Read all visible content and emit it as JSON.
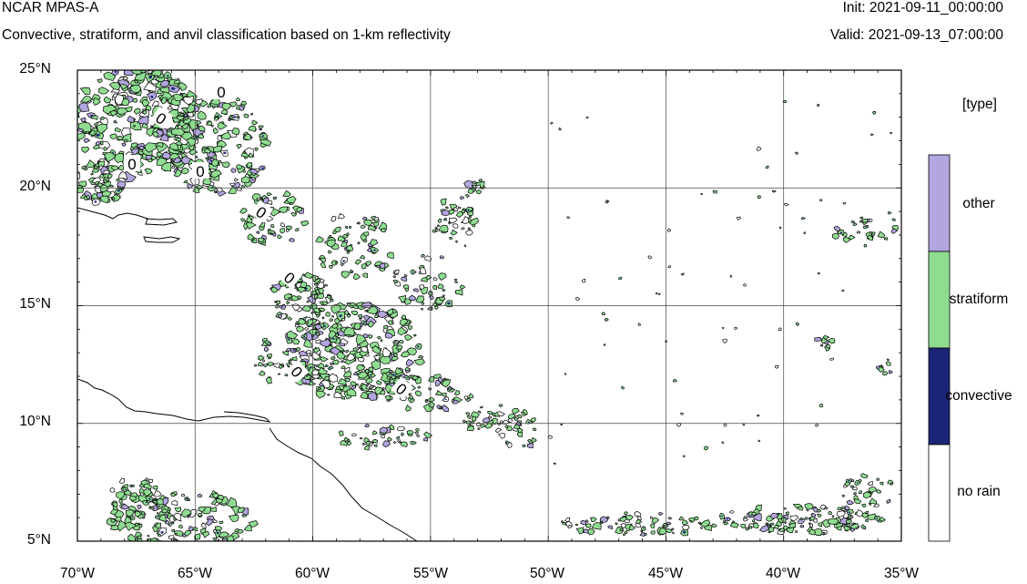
{
  "header": {
    "title": "NCAR MPAS-A",
    "subtitle": "Convective, stratiform, and anvil classification based on 1-km reflectivity",
    "init": "Init: 2021-09-11_00:00:00",
    "valid": "Valid: 2021-09-13_07:00:00"
  },
  "map": {
    "lon_range": [
      -70,
      -35
    ],
    "lat_range": [
      5,
      25
    ],
    "lat_labels": [
      "25°N",
      "20°N",
      "15°N",
      "10°N",
      "5°N"
    ],
    "lon_labels": [
      "70°W",
      "65°W",
      "60°W",
      "55°W",
      "50°W",
      "45°W",
      "40°W",
      "35°W"
    ],
    "contour_label": "0",
    "gridlines": true
  },
  "legend": {
    "title": "[type]",
    "categories": [
      {
        "label": "other",
        "color": "#b3a6de"
      },
      {
        "label": "stratiform",
        "color": "#8fdc91"
      },
      {
        "label": "convective",
        "color": "#1b2575"
      },
      {
        "label": "no rain",
        "color": "#ffffff"
      }
    ]
  }
}
